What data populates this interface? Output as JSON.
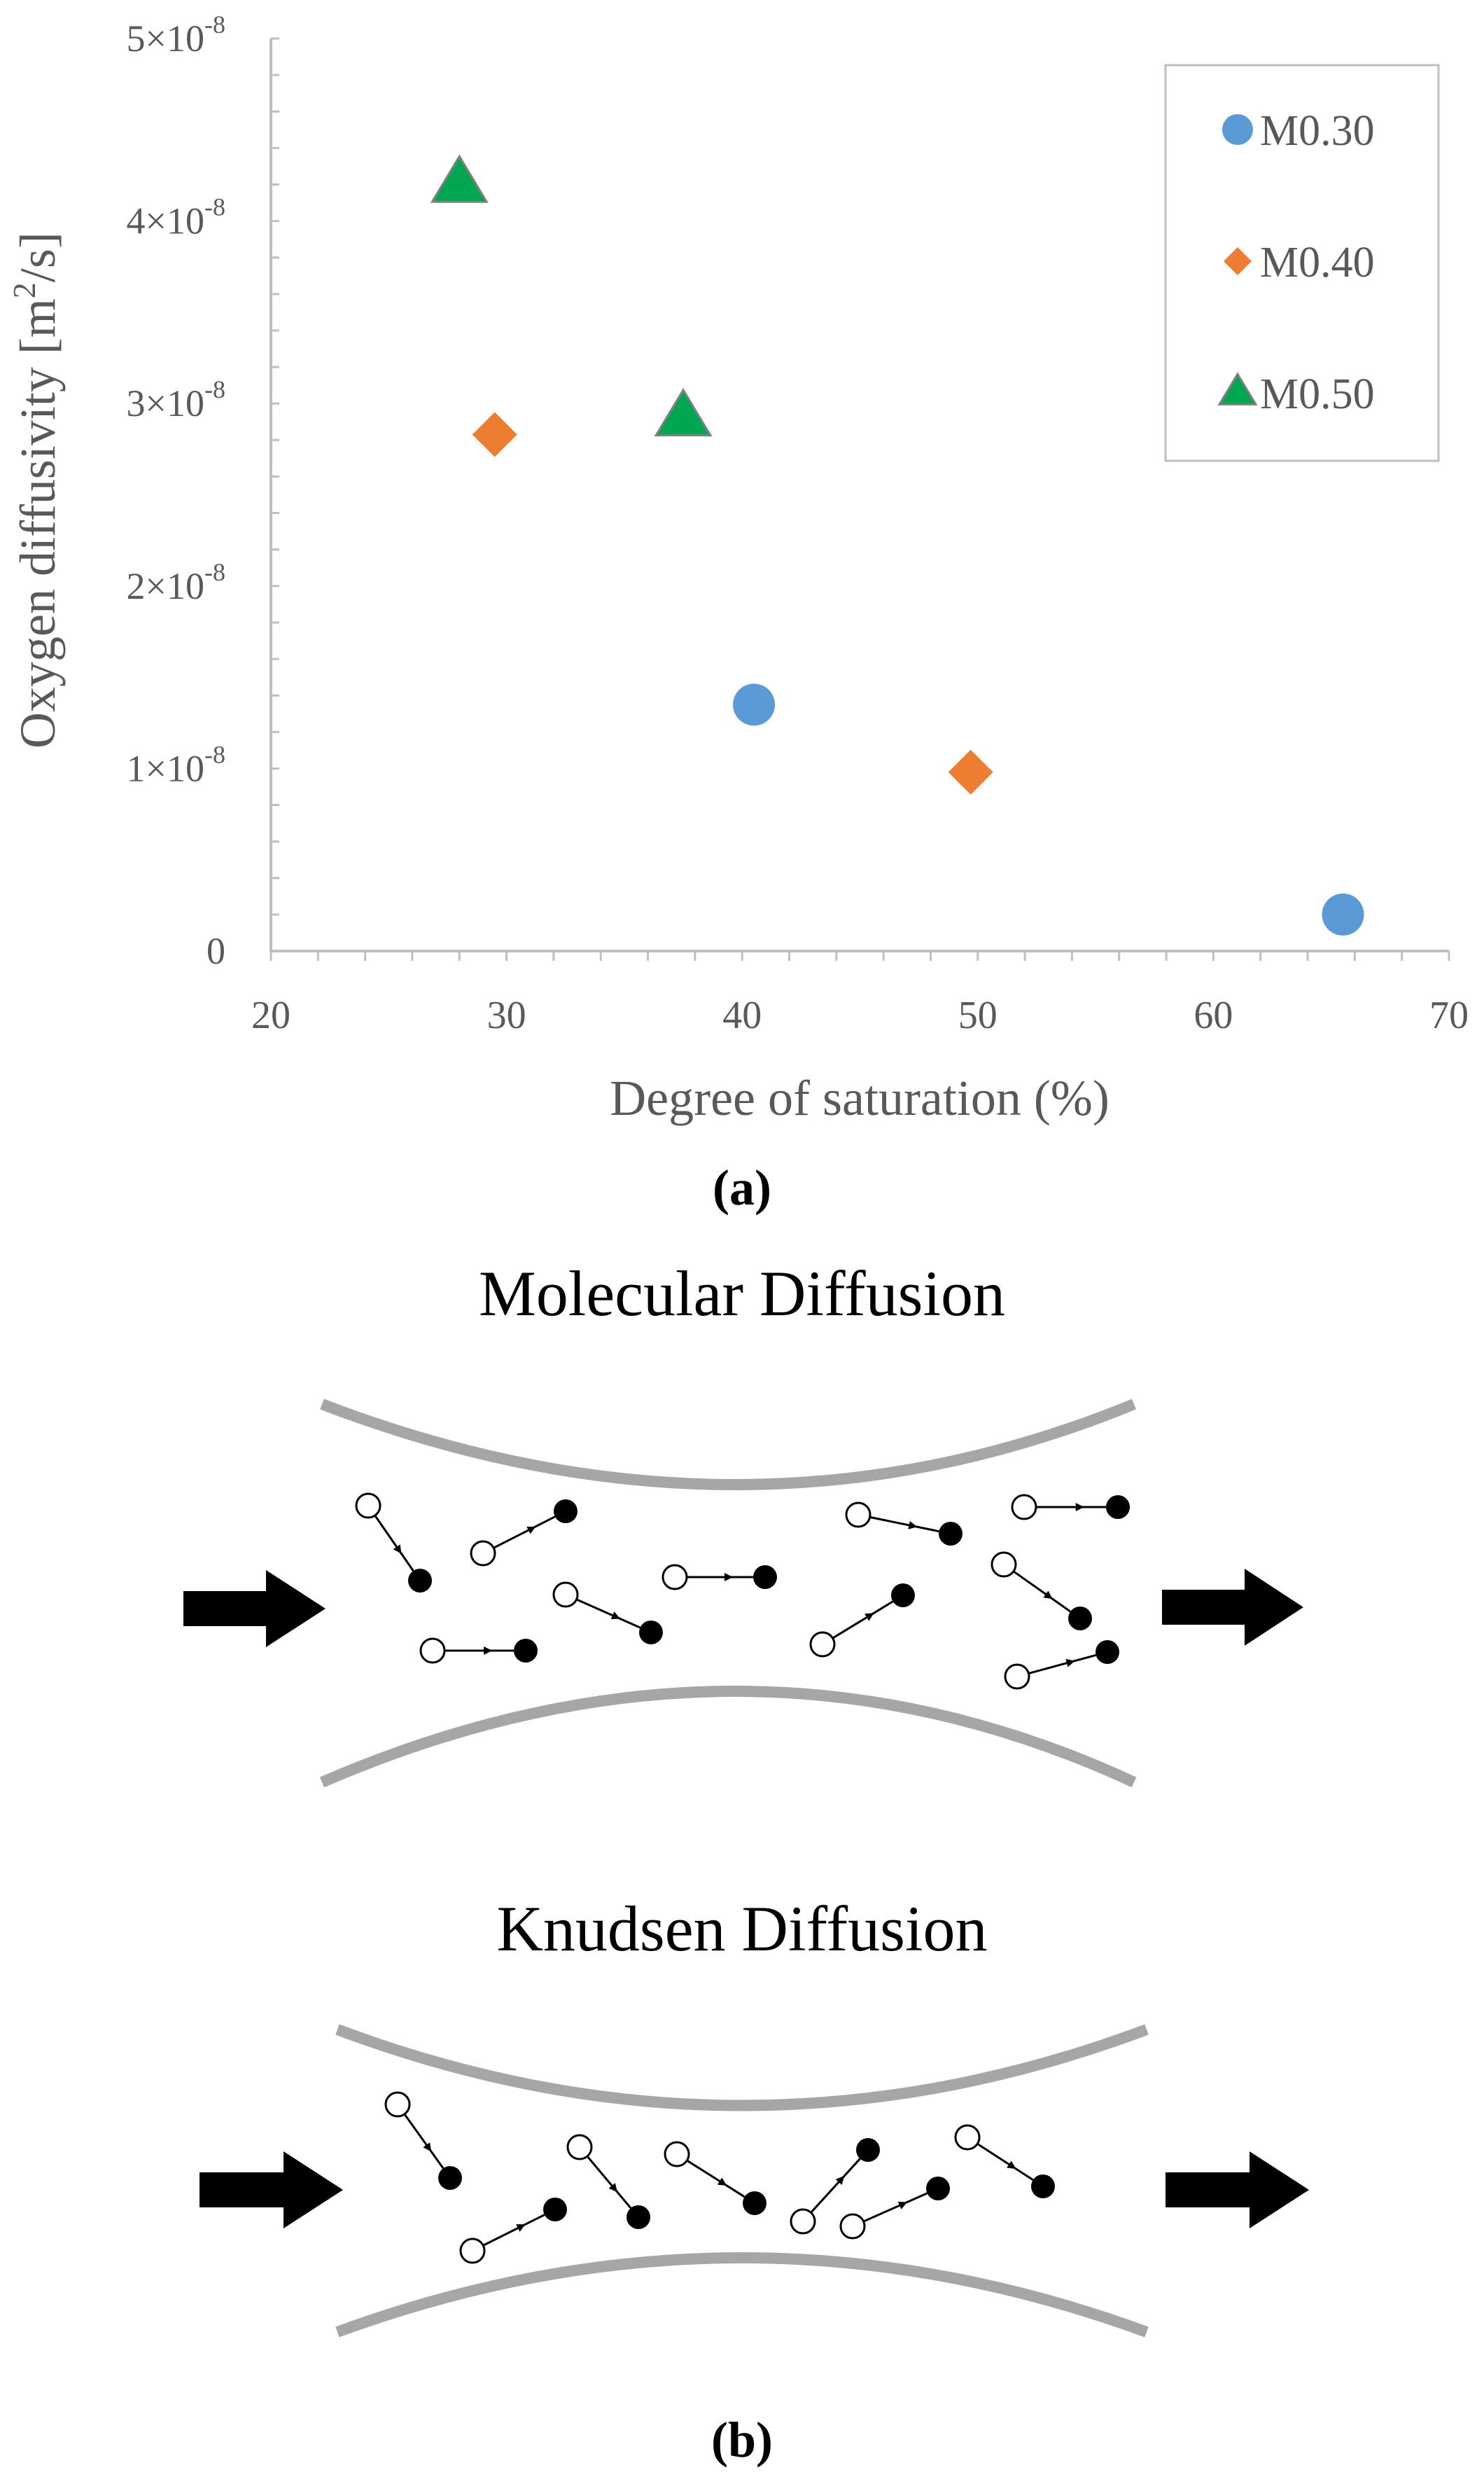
{
  "chart_data": {
    "type": "scatter",
    "title": "",
    "xlabel": "Degree of saturation (%)",
    "ylabel_main": "Oxygen diffusivity [m",
    "ylabel_sup": "2",
    "ylabel_tail": "/s]",
    "xlim": [
      20,
      70
    ],
    "ylim": [
      0,
      5e-08
    ],
    "x_ticks": [
      {
        "value": 20,
        "label": "20"
      },
      {
        "value": 30,
        "label": "30"
      },
      {
        "value": 40,
        "label": "40"
      },
      {
        "value": 50,
        "label": "50"
      },
      {
        "value": 60,
        "label": "60"
      },
      {
        "value": 70,
        "label": "70"
      }
    ],
    "y_ticks": [
      {
        "value": 0,
        "mant": "0",
        "exp": ""
      },
      {
        "value": 1e-08,
        "mant": "1×10",
        "exp": "-8"
      },
      {
        "value": 2e-08,
        "mant": "2×10",
        "exp": "-8"
      },
      {
        "value": 3e-08,
        "mant": "3×10",
        "exp": "-8"
      },
      {
        "value": 4e-08,
        "mant": "4×10",
        "exp": "-8"
      },
      {
        "value": 5e-08,
        "mant": "5×10",
        "exp": "-8"
      }
    ],
    "legend_position": "top-right",
    "series": [
      {
        "name": "M0.30",
        "marker": "circle",
        "color": "#5B9BD5",
        "points": [
          {
            "x": 40.5,
            "y": 1.35e-08
          },
          {
            "x": 65.5,
            "y": 2e-09
          }
        ]
      },
      {
        "name": "M0.40",
        "marker": "diamond",
        "color": "#ED7D31",
        "points": [
          {
            "x": 29.5,
            "y": 2.83e-08
          },
          {
            "x": 49.7,
            "y": 9.8e-09
          }
        ]
      },
      {
        "name": "M0.50",
        "marker": "triangle",
        "color": "#00A650",
        "points": [
          {
            "x": 28.0,
            "y": 4.2e-08
          },
          {
            "x": 37.5,
            "y": 2.92e-08
          }
        ]
      }
    ]
  },
  "caption_a": "(a)",
  "caption_b": "(b)",
  "diagram": {
    "molecular_title": "Molecular Diffusion",
    "knudsen_title": "Knudsen Diffusion",
    "wall_color": "#A6A6A6"
  }
}
